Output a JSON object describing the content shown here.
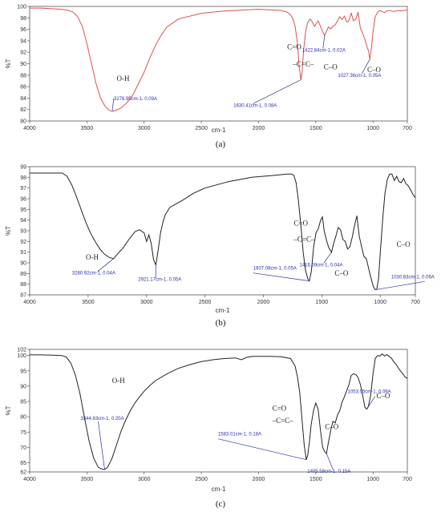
{
  "chart_data": [
    {
      "type": "line",
      "panel_label": "(a)",
      "xlabel": "cm-1",
      "ylabel": "%T",
      "xlim": [
        4000,
        700
      ],
      "ylim": [
        80,
        100
      ],
      "x_ticks": [
        4000,
        3500,
        3000,
        2500,
        2000,
        1500,
        1000,
        700
      ],
      "y_ticks": [
        80,
        82,
        84,
        86,
        88,
        90,
        92,
        94,
        96,
        98,
        100
      ],
      "line_color": "#d9534f",
      "grid": false,
      "series": [
        {
          "x": [
            4000,
            3900,
            3800,
            3720,
            3660,
            3620,
            3580,
            3540,
            3500,
            3460,
            3420,
            3380,
            3340,
            3300,
            3279,
            3250,
            3200,
            3150,
            3100,
            3050,
            3000,
            2950,
            2900,
            2850,
            2800,
            2700,
            2500,
            2300,
            2100,
            2000,
            1900,
            1800,
            1750,
            1720,
            1700,
            1680,
            1660,
            1645,
            1630,
            1620,
            1605,
            1590,
            1570,
            1550,
            1530,
            1510,
            1495,
            1480,
            1460,
            1440,
            1423,
            1410,
            1390,
            1370,
            1350,
            1330,
            1310,
            1290,
            1270,
            1250,
            1230,
            1210,
            1190,
            1170,
            1150,
            1130,
            1110,
            1090,
            1070,
            1050,
            1040,
            1027,
            1015,
            1000,
            980,
            960,
            940,
            920,
            900,
            880,
            860,
            840,
            820,
            800,
            780,
            760,
            740,
            720,
            700
          ],
          "y": [
            99.7,
            99.7,
            99.6,
            99.5,
            99.3,
            99,
            98.2,
            96.5,
            93.5,
            90,
            86.5,
            84,
            82.5,
            81.8,
            81.7,
            81.8,
            82.3,
            83.2,
            84.5,
            86.5,
            88.5,
            91,
            93.2,
            95,
            96.4,
            97.8,
            98.8,
            99.2,
            99.4,
            99.5,
            99.4,
            99.3,
            99,
            98.5,
            97.8,
            96.5,
            93.5,
            89.5,
            87.2,
            88.5,
            92.5,
            95.5,
            97.2,
            97.8,
            97.3,
            96.5,
            97,
            97.5,
            96.6,
            95.6,
            94.9,
            95.5,
            96.4,
            96.1,
            96.5,
            96.8,
            97.5,
            98.2,
            97.7,
            98.3,
            97.3,
            97.5,
            98.8,
            97.5,
            97.8,
            99,
            96.2,
            95.3,
            94.2,
            92.8,
            92.3,
            90.8,
            92.5,
            95.5,
            98.2,
            99,
            99.3,
            99.1,
            98.9,
            99.2,
            99.3,
            99.2,
            99.1,
            99.2,
            99.3,
            99.2,
            99.3,
            99.3,
            99.4
          ]
        }
      ],
      "annotations": [
        {
          "text": "3278.95cm-1, 0.09A",
          "x": 3279,
          "y": 81.7
        },
        {
          "text": "1630.41cm-1, 0.08A",
          "x": 1630,
          "y": 87.2
        },
        {
          "text": "1422.84cm-1, 0.02A",
          "x": 1423,
          "y": 94.9
        },
        {
          "text": "1027.36cm-1, 0.05A",
          "x": 1027,
          "y": 90.8
        }
      ],
      "group_labels": [
        "O-H",
        "C=O",
        "–C=C–",
        "C–O",
        "C–O"
      ]
    },
    {
      "type": "line",
      "panel_label": "(b)",
      "xlabel": "cm-1",
      "ylabel": "%T",
      "xlim": [
        4000,
        700
      ],
      "ylim": [
        87,
        99
      ],
      "x_ticks": [
        4000,
        3500,
        3000,
        2500,
        2000,
        1500,
        1000,
        700
      ],
      "y_ticks": [
        87,
        88,
        89,
        90,
        91,
        92,
        93,
        94,
        95,
        96,
        97,
        98,
        99
      ],
      "line_color": "#222222",
      "grid": false,
      "series": [
        {
          "x": [
            4000,
            3900,
            3800,
            3720,
            3680,
            3640,
            3600,
            3560,
            3520,
            3480,
            3440,
            3400,
            3360,
            3320,
            3281,
            3250,
            3200,
            3150,
            3100,
            3060,
            3020,
            3000,
            2980,
            2960,
            2940,
            2921,
            2900,
            2880,
            2860,
            2840,
            2800,
            2700,
            2600,
            2500,
            2400,
            2300,
            2200,
            2100,
            2000,
            1900,
            1800,
            1760,
            1740,
            1720,
            1700,
            1680,
            1660,
            1640,
            1620,
            1607,
            1590,
            1570,
            1550,
            1530,
            1510,
            1495,
            1480,
            1460,
            1440,
            1417,
            1400,
            1380,
            1360,
            1340,
            1320,
            1300,
            1280,
            1260,
            1240,
            1220,
            1200,
            1180,
            1160,
            1140,
            1120,
            1100,
            1080,
            1060,
            1045,
            1031,
            1015,
            1000,
            980,
            960,
            940,
            920,
            900,
            880,
            860,
            840,
            820,
            800,
            780,
            760,
            740,
            720,
            700
          ],
          "y": [
            98.4,
            98.4,
            98.4,
            98.4,
            98.1,
            97.3,
            96.2,
            95,
            93.8,
            92.8,
            92,
            91.3,
            90.8,
            90.5,
            90.4,
            90.8,
            91.4,
            92.2,
            92.9,
            93.1,
            92.8,
            92,
            92.6,
            91.8,
            90.3,
            89.8,
            91.2,
            92.8,
            93.8,
            94.5,
            95.2,
            95.8,
            96.5,
            97,
            97.3,
            97.6,
            97.8,
            98,
            98.1,
            98.2,
            98.3,
            98.3,
            98.2,
            97.5,
            95.8,
            93.5,
            91,
            89.3,
            88.5,
            88.3,
            89.2,
            91.5,
            92.8,
            93.2,
            94,
            94.3,
            93,
            92.1,
            91.4,
            91,
            91.8,
            92.5,
            93.3,
            93.1,
            92.2,
            92,
            91.3,
            91.5,
            92.4,
            93.5,
            94.4,
            92.5,
            91.5,
            90.6,
            90.4,
            89.5,
            88.6,
            87.8,
            87.5,
            87.5,
            88.5,
            91,
            94,
            96.5,
            97.8,
            98.3,
            98.3,
            97.7,
            98.1,
            97.6,
            97.5,
            97.9,
            97.4,
            97.2,
            96.8,
            96.4,
            96.1
          ]
        }
      ],
      "annotations": [
        {
          "text": "3280.92cm-1, 0.04A",
          "x": 3281,
          "y": 90.4
        },
        {
          "text": "2921.17cm-1, 0.05A",
          "x": 2921,
          "y": 89.8
        },
        {
          "text": "1607.08cm-1, 0.05A",
          "x": 1607,
          "y": 88.3
        },
        {
          "text": "1416.59cm-1, 0.04A",
          "x": 1417,
          "y": 91
        },
        {
          "text": "1030.83cm-1, 0.06A",
          "x": 1031,
          "y": 87.5
        }
      ],
      "group_labels": [
        "O-H",
        "C=O",
        "–C=C–",
        "C–O",
        "C–O"
      ]
    },
    {
      "type": "line",
      "panel_label": "(c)",
      "xlabel": "cm-1",
      "ylabel": "%T",
      "xlim": [
        4000,
        700
      ],
      "ylim": [
        62,
        102
      ],
      "x_ticks": [
        4000,
        3500,
        3000,
        2500,
        2000,
        1500,
        1000,
        700
      ],
      "y_ticks": [
        62,
        65,
        70,
        75,
        80,
        85,
        90,
        95,
        100,
        102
      ],
      "line_color": "#222222",
      "grid": false,
      "series": [
        {
          "x": [
            4000,
            3900,
            3800,
            3720,
            3680,
            3640,
            3600,
            3560,
            3520,
            3480,
            3440,
            3400,
            3360,
            3345,
            3320,
            3280,
            3240,
            3200,
            3160,
            3120,
            3080,
            3040,
            3000,
            2950,
            2900,
            2800,
            2700,
            2600,
            2500,
            2400,
            2300,
            2200,
            2150,
            2100,
            2050,
            2000,
            1900,
            1800,
            1720,
            1680,
            1660,
            1640,
            1620,
            1600,
            1583,
            1570,
            1555,
            1540,
            1520,
            1500,
            1480,
            1460,
            1440,
            1420,
            1406,
            1390,
            1370,
            1350,
            1330,
            1310,
            1290,
            1270,
            1250,
            1230,
            1210,
            1190,
            1170,
            1150,
            1130,
            1110,
            1090,
            1070,
            1053,
            1040,
            1020,
            1000,
            980,
            960,
            940,
            920,
            900,
            880,
            860,
            840,
            820,
            800,
            780,
            760,
            740,
            720,
            700
          ],
          "y": [
            100.2,
            100.2,
            100.1,
            100,
            99.5,
            97.5,
            93.5,
            87.5,
            79.5,
            72,
            66.5,
            63.5,
            62.8,
            62.8,
            63.5,
            66.5,
            71,
            75.5,
            79,
            82,
            84.5,
            86.5,
            88.3,
            90.2,
            91.8,
            94,
            95.8,
            97,
            98,
            98.6,
            99,
            99.2,
            98.6,
            99.4,
            99.7,
            99.7,
            99.7,
            99.6,
            99,
            96.5,
            93,
            88,
            79,
            70.5,
            66,
            67.5,
            72,
            77.5,
            82,
            84.5,
            82.5,
            76,
            70,
            68.5,
            68,
            71.5,
            75.5,
            78.5,
            78,
            80.5,
            82,
            84.8,
            86.5,
            88.5,
            90.5,
            93.5,
            94,
            93.8,
            92.8,
            90.5,
            87,
            83,
            82.5,
            83.5,
            87,
            94,
            99,
            100,
            99.8,
            100.5,
            99.8,
            100.3,
            99.7,
            99.2,
            98,
            97.2,
            96,
            95,
            94,
            93,
            92.5
          ]
        }
      ],
      "annotations": [
        {
          "text": "3344.63cm-1, 0.20A",
          "x": 3345,
          "y": 62.8
        },
        {
          "text": "1583.01cm-1, 0.18A",
          "x": 1583,
          "y": 66
        },
        {
          "text": "1405.58cm-1, 0.15A",
          "x": 1406,
          "y": 68
        },
        {
          "text": "1053.05cm-1, 0.09A",
          "x": 1053,
          "y": 82.5
        }
      ],
      "group_labels": [
        "O-H",
        "C=O",
        "–C=C–",
        "C–O",
        "C–O"
      ]
    }
  ]
}
